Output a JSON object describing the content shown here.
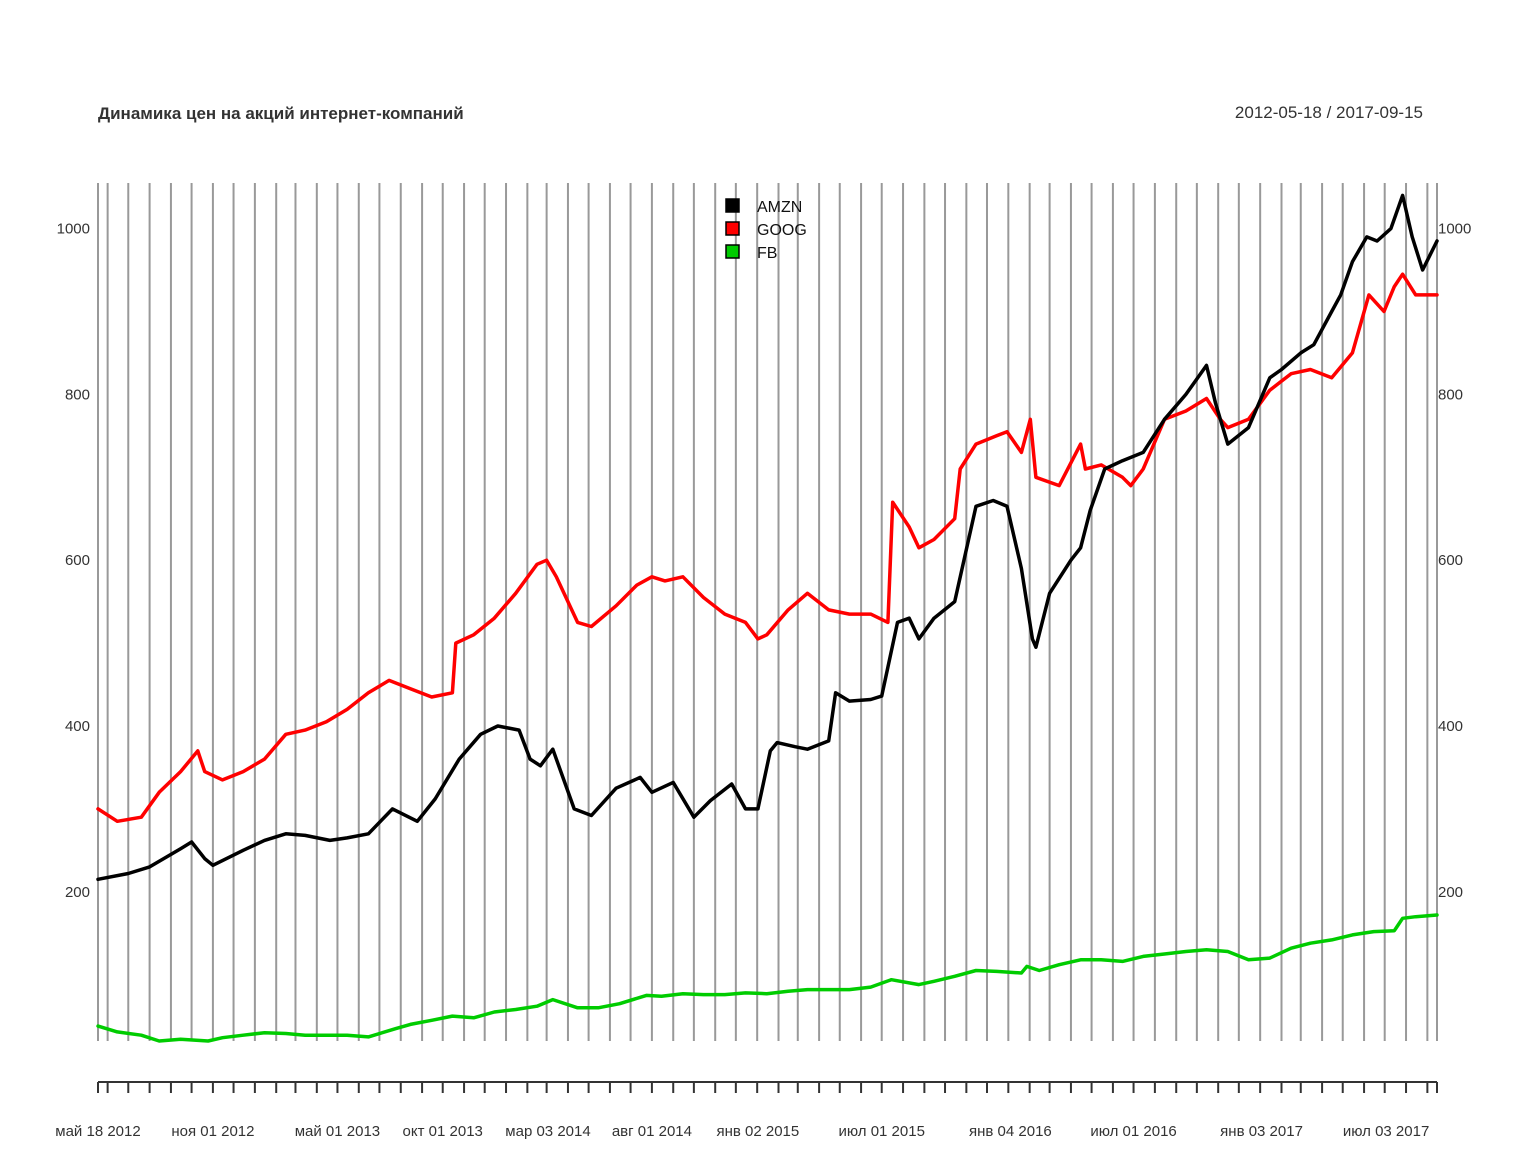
{
  "chart_data": {
    "type": "line",
    "title": "Динамика цен на акций интернет-компаний",
    "date_range": "2012-05-18 / 2017-09-15",
    "x_start": "2012-05-18",
    "x_end": "2017-09-15",
    "ylim": [
      20,
      1055
    ],
    "y_ticks": [
      200,
      400,
      600,
      800,
      1000
    ],
    "y_tick_labels": [
      "200",
      "400",
      "600",
      "800",
      "1000"
    ],
    "grid": true,
    "legend_position": "top-center",
    "x_tick_labels": [
      {
        "date": "2012-05-18",
        "label": "май 18 2012"
      },
      {
        "date": "2012-11-01",
        "label": "ноя 01 2012"
      },
      {
        "date": "2013-05-01",
        "label": "май 01 2013"
      },
      {
        "date": "2013-10-01",
        "label": "окт 01 2013"
      },
      {
        "date": "2014-03-03",
        "label": "мар 03 2014"
      },
      {
        "date": "2014-08-01",
        "label": "авг 01 2014"
      },
      {
        "date": "2015-01-02",
        "label": "янв 02 2015"
      },
      {
        "date": "2015-07-01",
        "label": "июл 01 2015"
      },
      {
        "date": "2016-01-04",
        "label": "янв 04 2016"
      },
      {
        "date": "2016-07-01",
        "label": "июл 01 2016"
      },
      {
        "date": "2017-01-03",
        "label": "янв 03 2017"
      },
      {
        "date": "2017-07-03",
        "label": "июл 03 2017"
      }
    ],
    "series": [
      {
        "name": "AMZN",
        "color": "#000000",
        "x": [
          "2012-05-18",
          "2012-07-01",
          "2012-08-01",
          "2012-09-15",
          "2012-10-01",
          "2012-10-20",
          "2012-11-01",
          "2012-12-15",
          "2013-01-15",
          "2013-02-15",
          "2013-03-15",
          "2013-04-20",
          "2013-05-15",
          "2013-06-15",
          "2013-07-20",
          "2013-08-25",
          "2013-09-20",
          "2013-10-25",
          "2013-11-25",
          "2013-12-20",
          "2014-01-20",
          "2014-02-05",
          "2014-02-20",
          "2014-03-10",
          "2014-04-10",
          "2014-05-05",
          "2014-06-10",
          "2014-07-15",
          "2014-08-01",
          "2014-09-01",
          "2014-10-01",
          "2014-10-25",
          "2014-11-25",
          "2014-12-15",
          "2015-01-02",
          "2015-01-20",
          "2015-01-30",
          "2015-02-25",
          "2015-03-15",
          "2015-04-15",
          "2015-04-25",
          "2015-05-15",
          "2015-06-15",
          "2015-07-01",
          "2015-07-24",
          "2015-08-10",
          "2015-08-24",
          "2015-09-15",
          "2015-10-15",
          "2015-11-15",
          "2015-12-10",
          "2015-12-30",
          "2016-01-20",
          "2016-02-05",
          "2016-02-10",
          "2016-03-01",
          "2016-04-01",
          "2016-04-15",
          "2016-04-29",
          "2016-05-20",
          "2016-06-15",
          "2016-07-15",
          "2016-08-15",
          "2016-09-15",
          "2016-10-15",
          "2016-10-28",
          "2016-11-15",
          "2016-12-15",
          "2017-01-15",
          "2017-02-01",
          "2017-03-01",
          "2017-03-20",
          "2017-04-15",
          "2017-04-28",
          "2017-05-15",
          "2017-06-05",
          "2017-06-20",
          "2017-07-10",
          "2017-07-27",
          "2017-08-10",
          "2017-08-25",
          "2017-09-15"
        ],
        "values": [
          215,
          222,
          230,
          252,
          260,
          240,
          232,
          250,
          262,
          270,
          268,
          262,
          265,
          270,
          300,
          285,
          312,
          360,
          390,
          400,
          395,
          360,
          352,
          372,
          300,
          292,
          325,
          338,
          320,
          332,
          290,
          310,
          330,
          300,
          300,
          370,
          380,
          375,
          372,
          382,
          440,
          430,
          432,
          436,
          525,
          530,
          505,
          530,
          550,
          665,
          672,
          665,
          590,
          505,
          495,
          560,
          600,
          615,
          660,
          710,
          720,
          730,
          770,
          800,
          835,
          790,
          740,
          760,
          820,
          830,
          850,
          860,
          900,
          920,
          960,
          990,
          985,
          1000,
          1040,
          990,
          950,
          985
        ]
      },
      {
        "name": "GOOG",
        "color": "#ff0000",
        "x": [
          "2012-05-18",
          "2012-06-15",
          "2012-07-20",
          "2012-08-15",
          "2012-09-15",
          "2012-10-10",
          "2012-10-20",
          "2012-11-15",
          "2012-12-15",
          "2013-01-15",
          "2013-02-15",
          "2013-03-15",
          "2013-04-15",
          "2013-05-15",
          "2013-06-15",
          "2013-07-15",
          "2013-08-15",
          "2013-09-15",
          "2013-10-15",
          "2013-10-20",
          "2013-11-15",
          "2013-12-15",
          "2014-01-15",
          "2014-02-15",
          "2014-03-01",
          "2014-03-15",
          "2014-04-15",
          "2014-05-05",
          "2014-06-10",
          "2014-07-10",
          "2014-08-01",
          "2014-08-20",
          "2014-09-15",
          "2014-10-15",
          "2014-11-15",
          "2014-12-15",
          "2015-01-02",
          "2015-01-15",
          "2015-02-15",
          "2015-03-15",
          "2015-04-15",
          "2015-05-15",
          "2015-06-15",
          "2015-07-10",
          "2015-07-17",
          "2015-08-10",
          "2015-08-24",
          "2015-09-15",
          "2015-10-15",
          "2015-10-23",
          "2015-11-15",
          "2015-12-15",
          "2015-12-30",
          "2016-01-20",
          "2016-02-02",
          "2016-02-10",
          "2016-03-15",
          "2016-04-15",
          "2016-04-22",
          "2016-05-15",
          "2016-06-15",
          "2016-06-27",
          "2016-07-15",
          "2016-08-15",
          "2016-09-15",
          "2016-10-15",
          "2016-11-04",
          "2016-11-15",
          "2016-12-15",
          "2017-01-15",
          "2017-02-15",
          "2017-03-15",
          "2017-04-15",
          "2017-05-15",
          "2017-06-08",
          "2017-06-30",
          "2017-07-15",
          "2017-07-27",
          "2017-08-15",
          "2017-09-15"
        ],
        "values": [
          300,
          285,
          290,
          320,
          345,
          370,
          345,
          335,
          345,
          360,
          390,
          395,
          405,
          420,
          440,
          455,
          445,
          435,
          440,
          500,
          510,
          530,
          560,
          595,
          600,
          580,
          525,
          520,
          545,
          570,
          580,
          575,
          580,
          555,
          535,
          525,
          505,
          510,
          540,
          560,
          540,
          535,
          535,
          525,
          670,
          640,
          615,
          625,
          650,
          710,
          740,
          750,
          755,
          730,
          770,
          700,
          690,
          740,
          710,
          715,
          700,
          690,
          710,
          770,
          780,
          795,
          770,
          760,
          770,
          805,
          825,
          830,
          820,
          850,
          920,
          900,
          930,
          945,
          920,
          920
        ]
      },
      {
        "name": "FB",
        "color": "#00cc00",
        "x": [
          "2012-05-18",
          "2012-06-15",
          "2012-07-20",
          "2012-08-15",
          "2012-09-15",
          "2012-10-25",
          "2012-11-15",
          "2012-12-15",
          "2013-01-15",
          "2013-02-15",
          "2013-03-15",
          "2013-04-15",
          "2013-05-15",
          "2013-06-15",
          "2013-07-25",
          "2013-08-15",
          "2013-09-15",
          "2013-10-15",
          "2013-11-15",
          "2013-12-15",
          "2014-01-15",
          "2014-02-15",
          "2014-03-10",
          "2014-04-15",
          "2014-05-15",
          "2014-06-15",
          "2014-07-24",
          "2014-08-15",
          "2014-09-15",
          "2014-10-15",
          "2014-11-15",
          "2014-12-15",
          "2015-01-15",
          "2015-02-15",
          "2015-03-15",
          "2015-04-15",
          "2015-05-15",
          "2015-06-15",
          "2015-07-15",
          "2015-08-24",
          "2015-09-15",
          "2015-10-15",
          "2015-11-15",
          "2015-12-15",
          "2016-01-20",
          "2016-01-28",
          "2016-02-15",
          "2016-03-15",
          "2016-04-15",
          "2016-05-15",
          "2016-06-15",
          "2016-07-15",
          "2016-08-15",
          "2016-09-15",
          "2016-10-15",
          "2016-11-15",
          "2016-12-15",
          "2017-01-15",
          "2017-02-15",
          "2017-03-15",
          "2017-04-15",
          "2017-05-15",
          "2017-06-15",
          "2017-07-15",
          "2017-07-27",
          "2017-08-15",
          "2017-09-15"
        ],
        "values": [
          38,
          31,
          27,
          20,
          22,
          20,
          24,
          27,
          30,
          29,
          27,
          27,
          27,
          25,
          35,
          40,
          45,
          50,
          48,
          55,
          58,
          62,
          70,
          60,
          60,
          65,
          75,
          74,
          77,
          76,
          76,
          78,
          77,
          80,
          82,
          82,
          82,
          85,
          94,
          88,
          92,
          98,
          105,
          104,
          102,
          110,
          105,
          112,
          118,
          118,
          116,
          122,
          125,
          128,
          130,
          128,
          118,
          120,
          132,
          138,
          142,
          148,
          152,
          153,
          168,
          170,
          172
        ]
      }
    ]
  }
}
